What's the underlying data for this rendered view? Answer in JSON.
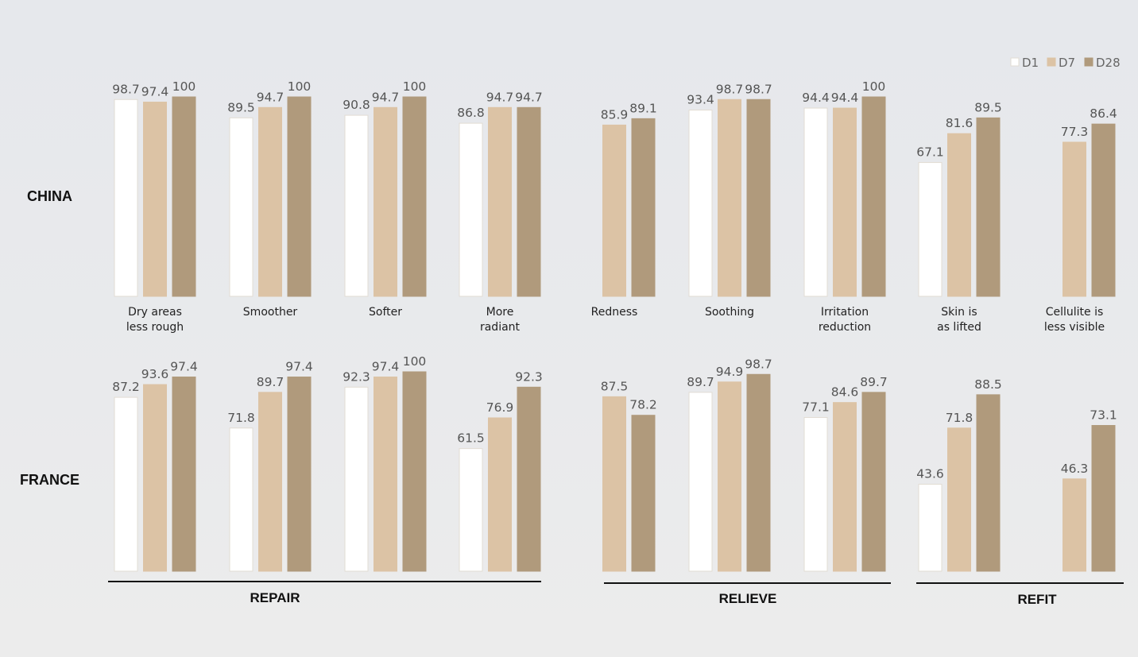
{
  "colors": {
    "D1": "#ffffff",
    "D7": "#dcc3a5",
    "D28": "#b09a7c",
    "bar_outline": "#e2dcd3"
  },
  "legend": [
    "D1",
    "D7",
    "D28"
  ],
  "row_labels": [
    "CHINA",
    "FRANCE"
  ],
  "groups": [
    "REPAIR",
    "RELIEVE",
    "REFIT"
  ],
  "categories": [
    [
      "Dry areas",
      "less rough"
    ],
    [
      "Smoother"
    ],
    [
      "Softer"
    ],
    [
      "More",
      "radiant"
    ],
    [
      "Redness"
    ],
    [
      "Soothing"
    ],
    [
      "Irritation",
      "reduction"
    ],
    [
      "Skin is",
      "as lifted"
    ],
    [
      "Cellulite is",
      "less visible"
    ]
  ],
  "chart_data": [
    {
      "type": "bar",
      "row": "CHINA",
      "categories": [
        "Dry areas less rough",
        "Smoother",
        "Softer",
        "More radiant",
        "Redness",
        "Soothing",
        "Irritation reduction",
        "Skin is as lifted",
        "Cellulite is less visible"
      ],
      "series": [
        {
          "name": "D1",
          "values": [
            98.7,
            89.5,
            90.8,
            86.8,
            null,
            93.4,
            94.4,
            67.1,
            null
          ]
        },
        {
          "name": "D7",
          "values": [
            97.4,
            94.7,
            94.7,
            94.7,
            85.9,
            98.7,
            94.4,
            81.6,
            77.3
          ]
        },
        {
          "name": "D28",
          "values": [
            100,
            100,
            100,
            94.7,
            89.1,
            98.7,
            100,
            89.5,
            86.4
          ]
        }
      ],
      "legend_position": "top-right",
      "grid": false
    },
    {
      "type": "bar",
      "row": "FRANCE",
      "categories": [
        "Dry areas less rough",
        "Smoother",
        "Softer",
        "More radiant",
        "Redness",
        "Soothing",
        "Irritation reduction",
        "Skin is as lifted",
        "Cellulite is less visible"
      ],
      "series": [
        {
          "name": "D1",
          "values": [
            87.2,
            71.8,
            92.3,
            61.5,
            null,
            89.7,
            77.1,
            43.6,
            null
          ]
        },
        {
          "name": "D7",
          "values": [
            93.6,
            89.7,
            97.4,
            76.9,
            87.5,
            94.9,
            84.6,
            71.8,
            46.3
          ]
        },
        {
          "name": "D28",
          "values": [
            97.4,
            97.4,
            100,
            92.3,
            78.2,
            98.7,
            89.7,
            88.5,
            73.1
          ]
        }
      ],
      "grid": false
    }
  ]
}
